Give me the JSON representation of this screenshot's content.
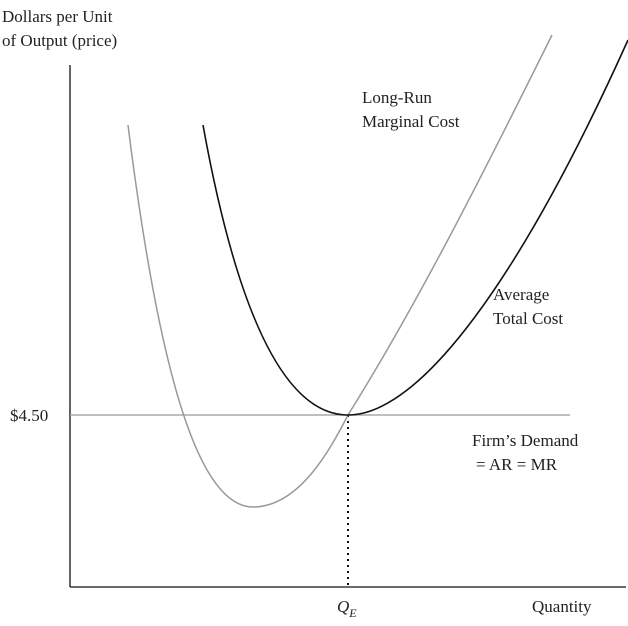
{
  "axes": {
    "y_label": [
      "Dollars per Unit",
      "of Output (price)"
    ],
    "x_label": "Quantity"
  },
  "price_label": "$4.50",
  "quantity_label": {
    "main": "Q",
    "subscript": "E"
  },
  "curves": [
    {
      "label": [
        "Long-Run",
        "Marginal Cost"
      ]
    },
    {
      "label": [
        "Average",
        "Total Cost"
      ]
    },
    {
      "label": [
        "Firm’s Demand",
        "= AR = MR"
      ]
    }
  ]
}
